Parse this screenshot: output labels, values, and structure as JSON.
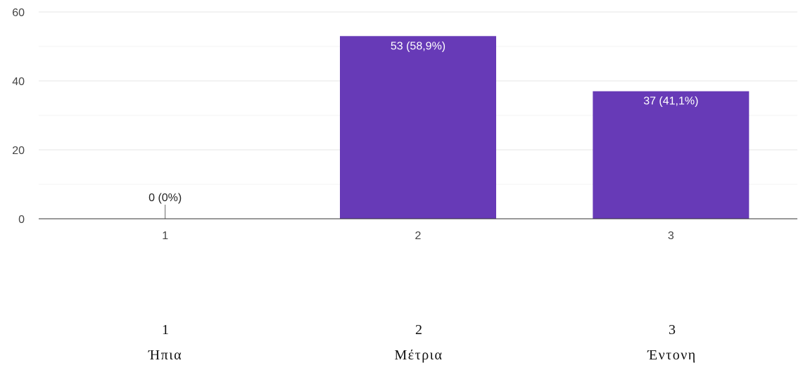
{
  "chart_data": {
    "type": "bar",
    "categories": [
      "1",
      "2",
      "3"
    ],
    "values": [
      0,
      53,
      37
    ],
    "data_labels": [
      "0 (0%)",
      "53 (58,9%)",
      "37 (41,1%)"
    ],
    "yticks": [
      "0",
      "20",
      "40",
      "60"
    ],
    "ylim": [
      0,
      60
    ],
    "grid": true,
    "bar_color": "#673ab7"
  },
  "scale_legend": [
    {
      "number": "1",
      "label": "Ήπια"
    },
    {
      "number": "2",
      "label": "Μέτρια"
    },
    {
      "number": "3",
      "label": "Έντονη"
    }
  ]
}
